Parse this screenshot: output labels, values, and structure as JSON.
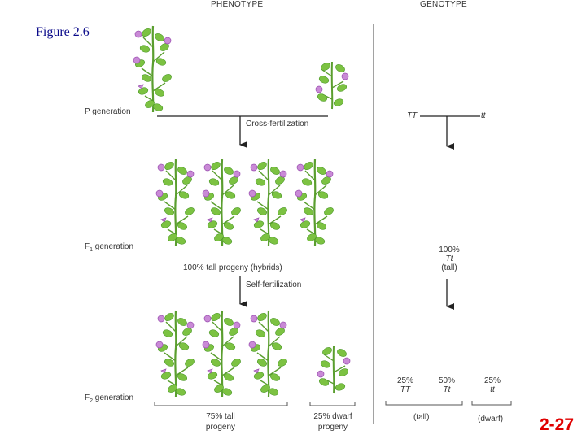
{
  "figure_label": "Figure 2.6",
  "headers": {
    "phenotype": "PHENOTYPE",
    "genotype": "GENOTYPE"
  },
  "generations": {
    "p": "P generation",
    "f1_main": "F",
    "f1_sub": "1",
    "f1_rest": " generation",
    "f2_main": "F",
    "f2_sub": "2",
    "f2_rest": " generation"
  },
  "steps": {
    "cross": "Cross-fertilization",
    "self": "Self-fertilization"
  },
  "phenotype_text": {
    "f1_result": "100% tall progeny (hybrids)",
    "f2_tall_line1": "75% tall",
    "f2_tall_line2": "progeny",
    "f2_dwarf_line1": "25% dwarf",
    "f2_dwarf_line2": "progeny"
  },
  "genotype_text": {
    "p_left": "TT",
    "p_right": "tt",
    "f1_pct": "100%",
    "f1_geno": "Tt",
    "f1_pheno": "(tall)",
    "f2_1_pct": "25%",
    "f2_1_geno": "TT",
    "f2_2_pct": "50%",
    "f2_2_geno": "Tt",
    "f2_3_pct": "25%",
    "f2_3_geno": "tt",
    "f2_tall": "(tall)",
    "f2_dwarf": "(dwarf)"
  },
  "slide_number": "2-27",
  "colors": {
    "leaf": "#7cc242",
    "leaf_dark": "#4e9a2a",
    "stem": "#5a9e2f",
    "flower": "#c98ad6",
    "flower_dark": "#9a4fb0",
    "figure_label": "#0a0a8a",
    "slide_number": "#e00000"
  }
}
